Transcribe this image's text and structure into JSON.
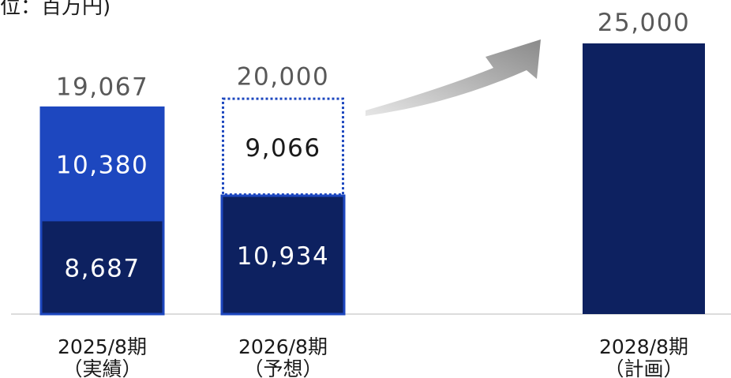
{
  "chart_data": {
    "type": "bar",
    "unit_label": "位：百万円)",
    "categories": [
      {
        "line1": "2025/8期",
        "line2": "（実績）"
      },
      {
        "line1": "2026/8期",
        "line2": "（予想）"
      },
      {
        "line1": "2028/8期",
        "line2": "（計画）"
      }
    ],
    "segments": [
      [
        {
          "value": 8687,
          "label": "8,687",
          "style": "solid-dark"
        },
        {
          "value": 10380,
          "label": "10,380",
          "style": "solid-blue"
        }
      ],
      [
        {
          "value": 10934,
          "label": "10,934",
          "style": "solid-dark"
        },
        {
          "value": 9066,
          "label": "9,066",
          "style": "dotted-outline"
        }
      ],
      [
        {
          "value": 25000,
          "label": "",
          "style": "solid-dark"
        }
      ]
    ],
    "totals": [
      "19,067",
      "20,000",
      "25,000"
    ],
    "ylim": [
      0,
      25000
    ],
    "annotation": "growth-arrow",
    "colors": {
      "dark": "#0d2160",
      "blue": "#1d47bf",
      "dotted": "#1d47bf",
      "inner_text": "#ffffff",
      "outline_text": "#1a1a1a",
      "total_text": "#595959",
      "category_text": "#1a1a1a",
      "axis": "#d0d0d0",
      "arrow": "#9e9e9e"
    }
  }
}
